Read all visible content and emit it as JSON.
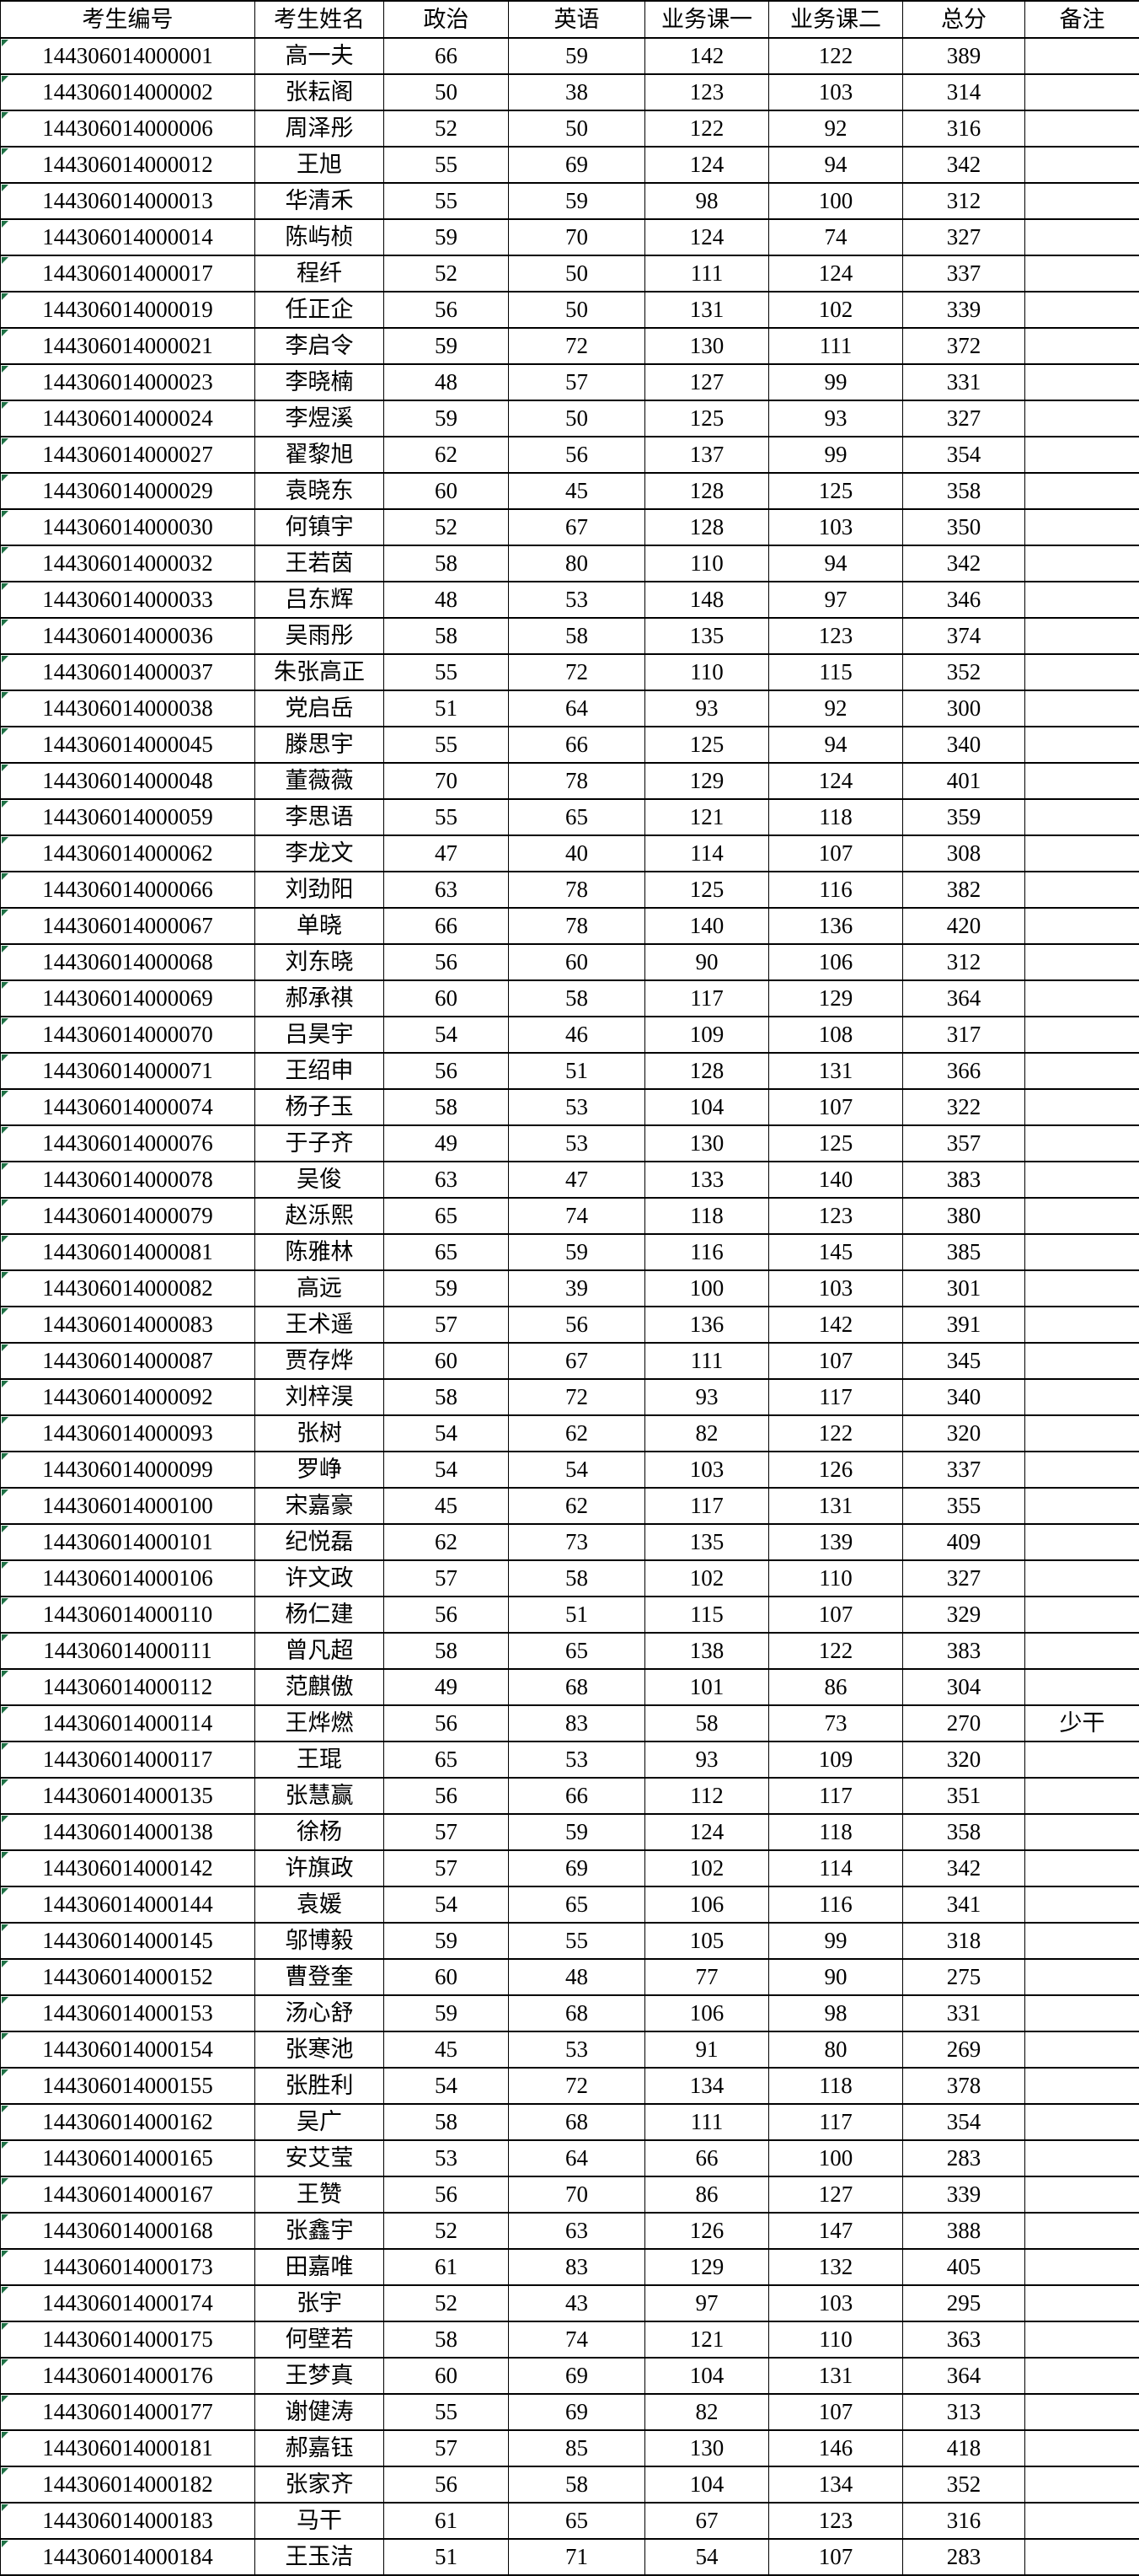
{
  "table": {
    "columns": [
      "考生编号",
      "考生姓名",
      "政治",
      "英语",
      "业务课一",
      "业务课二",
      "总分",
      "备注"
    ],
    "column_keys": [
      "exam-id",
      "name",
      "politics",
      "english",
      "course1",
      "course2",
      "total",
      "remark"
    ],
    "rows": [
      [
        "144306014000001",
        "高一夫",
        66,
        59,
        142,
        122,
        389,
        ""
      ],
      [
        "144306014000002",
        "张耘阁",
        50,
        38,
        123,
        103,
        314,
        ""
      ],
      [
        "144306014000006",
        "周泽彤",
        52,
        50,
        122,
        92,
        316,
        ""
      ],
      [
        "144306014000012",
        "王旭",
        55,
        69,
        124,
        94,
        342,
        ""
      ],
      [
        "144306014000013",
        "华清禾",
        55,
        59,
        98,
        100,
        312,
        ""
      ],
      [
        "144306014000014",
        "陈屿桢",
        59,
        70,
        124,
        74,
        327,
        ""
      ],
      [
        "144306014000017",
        "程纤",
        52,
        50,
        111,
        124,
        337,
        ""
      ],
      [
        "144306014000019",
        "任正企",
        56,
        50,
        131,
        102,
        339,
        ""
      ],
      [
        "144306014000021",
        "李启令",
        59,
        72,
        130,
        111,
        372,
        ""
      ],
      [
        "144306014000023",
        "李晓楠",
        48,
        57,
        127,
        99,
        331,
        ""
      ],
      [
        "144306014000024",
        "李煜溪",
        59,
        50,
        125,
        93,
        327,
        ""
      ],
      [
        "144306014000027",
        "翟黎旭",
        62,
        56,
        137,
        99,
        354,
        ""
      ],
      [
        "144306014000029",
        "袁晓东",
        60,
        45,
        128,
        125,
        358,
        ""
      ],
      [
        "144306014000030",
        "何镇宇",
        52,
        67,
        128,
        103,
        350,
        ""
      ],
      [
        "144306014000032",
        "王若茵",
        58,
        80,
        110,
        94,
        342,
        ""
      ],
      [
        "144306014000033",
        "吕东辉",
        48,
        53,
        148,
        97,
        346,
        ""
      ],
      [
        "144306014000036",
        "吴雨彤",
        58,
        58,
        135,
        123,
        374,
        ""
      ],
      [
        "144306014000037",
        "朱张高正",
        55,
        72,
        110,
        115,
        352,
        ""
      ],
      [
        "144306014000038",
        "党启岳",
        51,
        64,
        93,
        92,
        300,
        ""
      ],
      [
        "144306014000045",
        "滕思宇",
        55,
        66,
        125,
        94,
        340,
        ""
      ],
      [
        "144306014000048",
        "董薇薇",
        70,
        78,
        129,
        124,
        401,
        ""
      ],
      [
        "144306014000059",
        "李思语",
        55,
        65,
        121,
        118,
        359,
        ""
      ],
      [
        "144306014000062",
        "李龙文",
        47,
        40,
        114,
        107,
        308,
        ""
      ],
      [
        "144306014000066",
        "刘劲阳",
        63,
        78,
        125,
        116,
        382,
        ""
      ],
      [
        "144306014000067",
        "单晓",
        66,
        78,
        140,
        136,
        420,
        ""
      ],
      [
        "144306014000068",
        "刘东晓",
        56,
        60,
        90,
        106,
        312,
        ""
      ],
      [
        "144306014000069",
        "郝承祺",
        60,
        58,
        117,
        129,
        364,
        ""
      ],
      [
        "144306014000070",
        "吕昊宇",
        54,
        46,
        109,
        108,
        317,
        ""
      ],
      [
        "144306014000071",
        "王绍申",
        56,
        51,
        128,
        131,
        366,
        ""
      ],
      [
        "144306014000074",
        "杨子玉",
        58,
        53,
        104,
        107,
        322,
        ""
      ],
      [
        "144306014000076",
        "于子齐",
        49,
        53,
        130,
        125,
        357,
        ""
      ],
      [
        "144306014000078",
        "吴俊",
        63,
        47,
        133,
        140,
        383,
        ""
      ],
      [
        "144306014000079",
        "赵泺熙",
        65,
        74,
        118,
        123,
        380,
        ""
      ],
      [
        "144306014000081",
        "陈雅林",
        65,
        59,
        116,
        145,
        385,
        ""
      ],
      [
        "144306014000082",
        "高远",
        59,
        39,
        100,
        103,
        301,
        ""
      ],
      [
        "144306014000083",
        "王术遥",
        57,
        56,
        136,
        142,
        391,
        ""
      ],
      [
        "144306014000087",
        "贾存烨",
        60,
        67,
        111,
        107,
        345,
        ""
      ],
      [
        "144306014000092",
        "刘梓淏",
        58,
        72,
        93,
        117,
        340,
        ""
      ],
      [
        "144306014000093",
        "张树",
        54,
        62,
        82,
        122,
        320,
        ""
      ],
      [
        "144306014000099",
        "罗峥",
        54,
        54,
        103,
        126,
        337,
        ""
      ],
      [
        "144306014000100",
        "宋嘉豪",
        45,
        62,
        117,
        131,
        355,
        ""
      ],
      [
        "144306014000101",
        "纪悦磊",
        62,
        73,
        135,
        139,
        409,
        ""
      ],
      [
        "144306014000106",
        "许文政",
        57,
        58,
        102,
        110,
        327,
        ""
      ],
      [
        "144306014000110",
        "杨仁建",
        56,
        51,
        115,
        107,
        329,
        ""
      ],
      [
        "144306014000111",
        "曾凡超",
        58,
        65,
        138,
        122,
        383,
        ""
      ],
      [
        "144306014000112",
        "范麒傲",
        49,
        68,
        101,
        86,
        304,
        ""
      ],
      [
        "144306014000114",
        "王烨燃",
        56,
        83,
        58,
        73,
        270,
        "少干"
      ],
      [
        "144306014000117",
        "王琨",
        65,
        53,
        93,
        109,
        320,
        ""
      ],
      [
        "144306014000135",
        "张慧赢",
        56,
        66,
        112,
        117,
        351,
        ""
      ],
      [
        "144306014000138",
        "徐杨",
        57,
        59,
        124,
        118,
        358,
        ""
      ],
      [
        "144306014000142",
        "许旗政",
        57,
        69,
        102,
        114,
        342,
        ""
      ],
      [
        "144306014000144",
        "袁媛",
        54,
        65,
        106,
        116,
        341,
        ""
      ],
      [
        "144306014000145",
        "邬博毅",
        59,
        55,
        105,
        99,
        318,
        ""
      ],
      [
        "144306014000152",
        "曹登奎",
        60,
        48,
        77,
        90,
        275,
        ""
      ],
      [
        "144306014000153",
        "汤心舒",
        59,
        68,
        106,
        98,
        331,
        ""
      ],
      [
        "144306014000154",
        "张寒池",
        45,
        53,
        91,
        80,
        269,
        ""
      ],
      [
        "144306014000155",
        "张胜利",
        54,
        72,
        134,
        118,
        378,
        ""
      ],
      [
        "144306014000162",
        "吴广",
        58,
        68,
        111,
        117,
        354,
        ""
      ],
      [
        "144306014000165",
        "安艾莹",
        53,
        64,
        66,
        100,
        283,
        ""
      ],
      [
        "144306014000167",
        "王赞",
        56,
        70,
        86,
        127,
        339,
        ""
      ],
      [
        "144306014000168",
        "张鑫宇",
        52,
        63,
        126,
        147,
        388,
        ""
      ],
      [
        "144306014000173",
        "田嘉唯",
        61,
        83,
        129,
        132,
        405,
        ""
      ],
      [
        "144306014000174",
        "张宇",
        52,
        43,
        97,
        103,
        295,
        ""
      ],
      [
        "144306014000175",
        "何壁若",
        58,
        74,
        121,
        110,
        363,
        ""
      ],
      [
        "144306014000176",
        "王梦真",
        60,
        69,
        104,
        131,
        364,
        ""
      ],
      [
        "144306014000177",
        "谢健涛",
        55,
        69,
        82,
        107,
        313,
        ""
      ],
      [
        "144306014000181",
        "郝嘉钰",
        57,
        85,
        130,
        146,
        418,
        ""
      ],
      [
        "144306014000182",
        "张家齐",
        56,
        58,
        104,
        134,
        352,
        ""
      ],
      [
        "144306014000183",
        "马干",
        61,
        65,
        67,
        123,
        316,
        ""
      ],
      [
        "144306014000184",
        "王玉洁",
        51,
        71,
        54,
        107,
        283,
        ""
      ]
    ]
  },
  "colors": {
    "border": "#000000",
    "background": "#ffffff",
    "text": "#000000",
    "text_indicator_green": "#1e7145"
  }
}
